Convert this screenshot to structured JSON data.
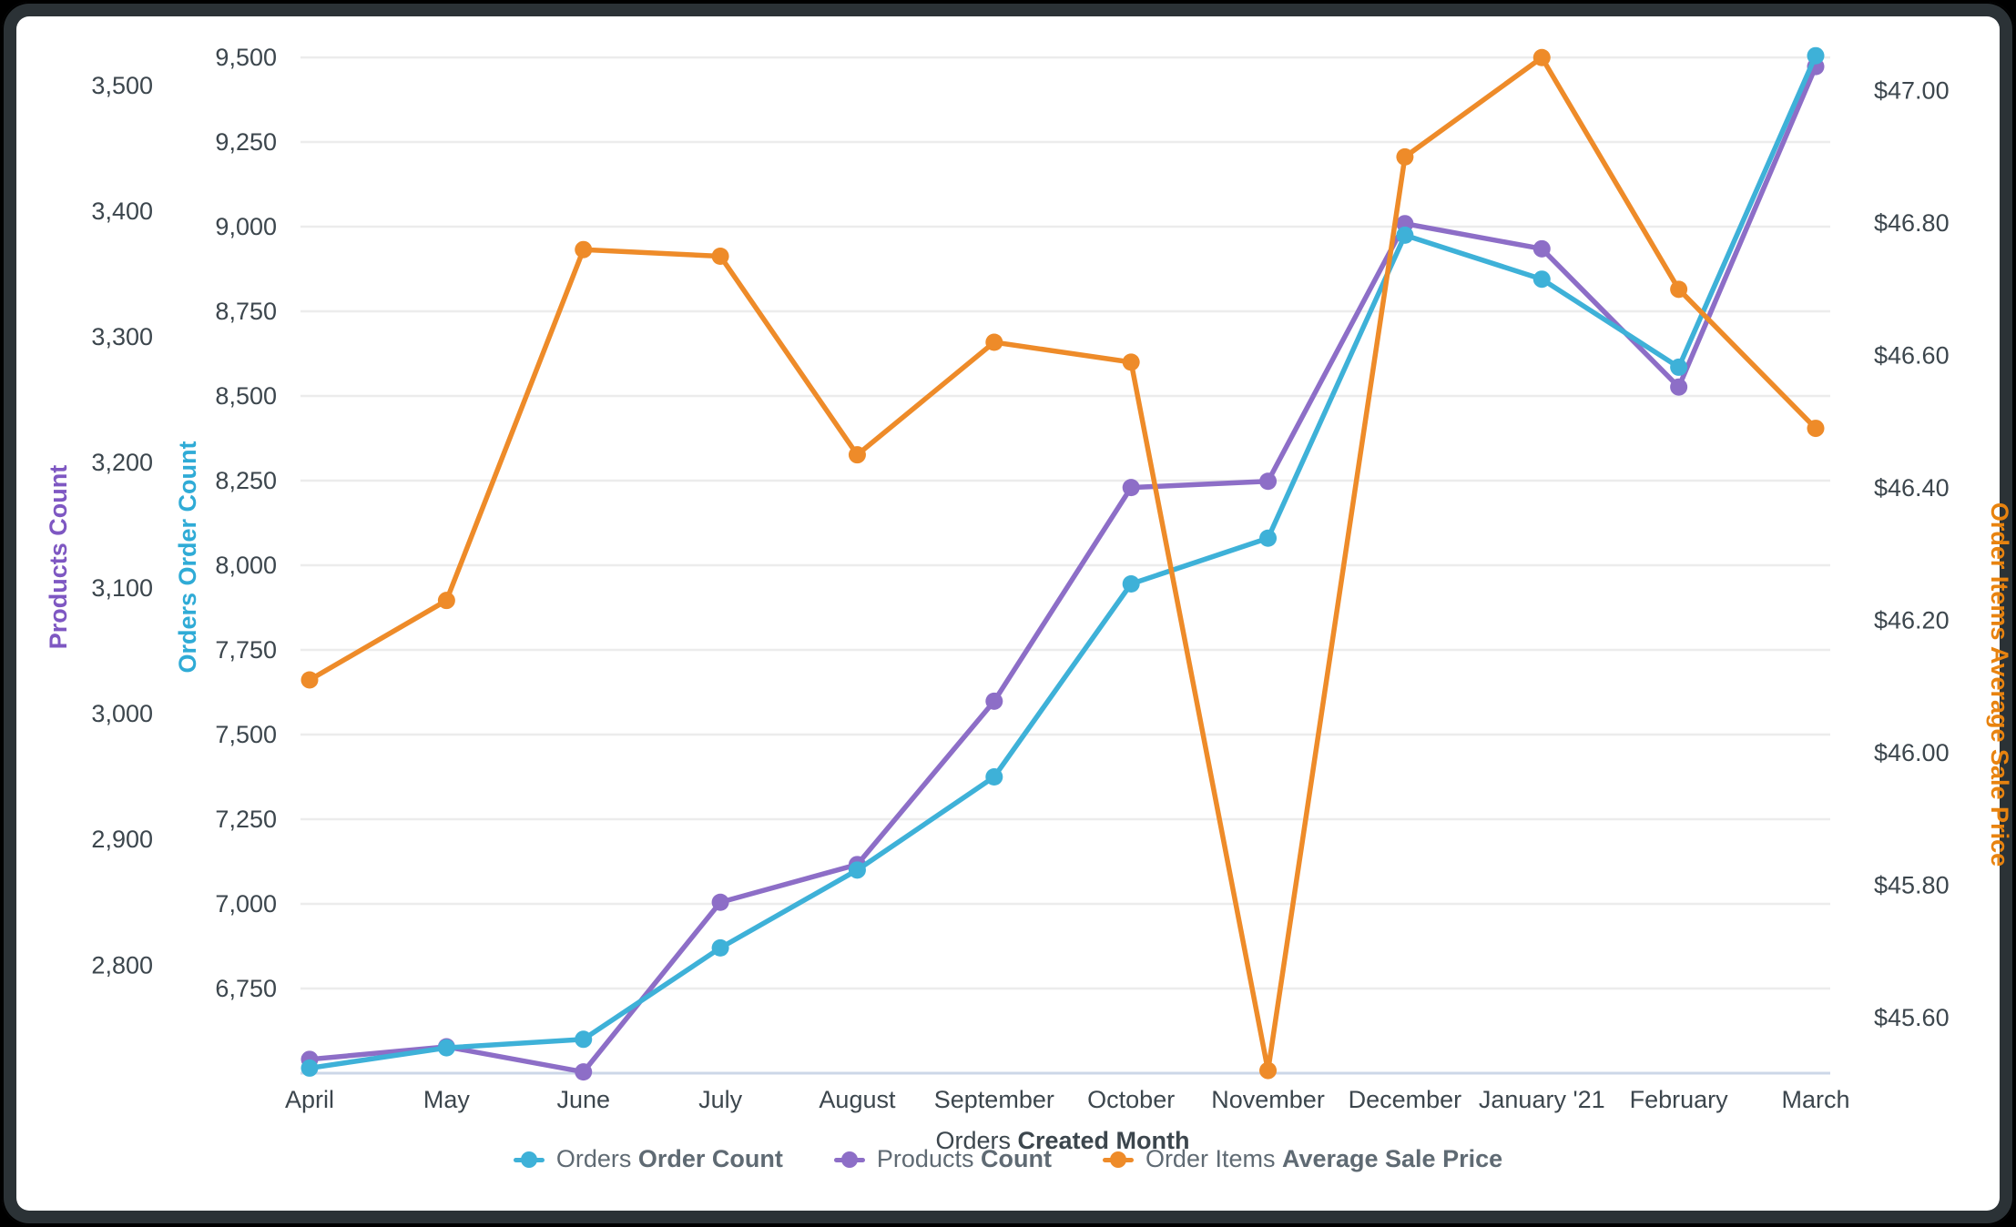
{
  "chart_data": {
    "type": "line",
    "title": "",
    "categories": [
      "April",
      "May",
      "June",
      "July",
      "August",
      "September",
      "October",
      "November",
      "December",
      "January '21",
      "February",
      "March"
    ],
    "series": [
      {
        "id": "orders",
        "label_regular": "Orders",
        "label_bold": "Order Count",
        "color": "#3eb1d8",
        "axis": "orders",
        "values": [
          6515,
          6575,
          6600,
          6870,
          7100,
          7375,
          7945,
          8080,
          8975,
          8845,
          8585,
          9505
        ]
      },
      {
        "id": "products",
        "label_regular": "Products",
        "label_bold": "Count",
        "color": "#8d6ec7",
        "axis": "products",
        "values": [
          2725,
          2735,
          2715,
          2850,
          2880,
          3010,
          3180,
          3185,
          3390,
          3370,
          3260,
          3515
        ]
      },
      {
        "id": "price",
        "label_regular": "Order Items",
        "label_bold": "Average Sale Price",
        "color": "#ee8b29",
        "axis": "price",
        "values": [
          46.11,
          46.23,
          46.76,
          46.75,
          46.45,
          46.62,
          46.59,
          45.52,
          46.9,
          47.05,
          46.7,
          46.49
        ]
      }
    ],
    "x_axis": {
      "title_regular": "Orders",
      "title_bold": "Created Month"
    },
    "axes": {
      "products": {
        "title": "Products Count",
        "color": "#7e57c2",
        "range": [
          2714,
          3539
        ],
        "ticks": [
          {
            "value": 2800,
            "label": "2,800"
          },
          {
            "value": 2900,
            "label": "2,900"
          },
          {
            "value": 3000,
            "label": "3,000"
          },
          {
            "value": 3100,
            "label": "3,100"
          },
          {
            "value": 3200,
            "label": "3,200"
          },
          {
            "value": 3300,
            "label": "3,300"
          },
          {
            "value": 3400,
            "label": "3,400"
          },
          {
            "value": 3500,
            "label": "3,500"
          }
        ]
      },
      "orders": {
        "title": "Orders Order Count",
        "color": "#2fabd6",
        "range": [
          6500,
          9562
        ],
        "ticks": [
          {
            "value": 6750,
            "label": "6,750"
          },
          {
            "value": 7000,
            "label": "7,000"
          },
          {
            "value": 7250,
            "label": "7,250"
          },
          {
            "value": 7500,
            "label": "7,500"
          },
          {
            "value": 7750,
            "label": "7,750"
          },
          {
            "value": 8000,
            "label": "8,000"
          },
          {
            "value": 8250,
            "label": "8,250"
          },
          {
            "value": 8500,
            "label": "8,500"
          },
          {
            "value": 8750,
            "label": "8,750"
          },
          {
            "value": 9000,
            "label": "9,000"
          },
          {
            "value": 9250,
            "label": "9,250"
          },
          {
            "value": 9500,
            "label": "9,500"
          }
        ]
      },
      "price": {
        "title": "Order Items Average Sale Price",
        "color": "#e8830f",
        "range": [
          45.516,
          47.082
        ],
        "ticks": [
          {
            "value": 45.6,
            "label": "$45.60"
          },
          {
            "value": 45.8,
            "label": "$45.80"
          },
          {
            "value": 46.0,
            "label": "$46.00"
          },
          {
            "value": 46.2,
            "label": "$46.20"
          },
          {
            "value": 46.4,
            "label": "$46.40"
          },
          {
            "value": 46.6,
            "label": "$46.60"
          },
          {
            "value": 46.8,
            "label": "$46.80"
          },
          {
            "value": 47.0,
            "label": "$47.00"
          }
        ]
      }
    },
    "grid": "horizontal",
    "legend_position": "bottom",
    "colors": {
      "gridline": "#ececec",
      "baseline": "#ccd7e8",
      "tick_text": "#3c464d",
      "legend_text": "#5f6a73"
    }
  }
}
